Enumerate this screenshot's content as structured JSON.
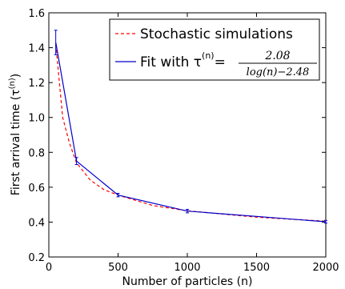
{
  "chart_data": {
    "type": "line",
    "xlabel": "Number of particles (n)",
    "ylabel": "First arrival time (τ^(n))",
    "ylabel_parts": {
      "main": "First arrival time (τ",
      "sup": "(n)",
      "close": ")"
    },
    "xlim": [
      0,
      2000
    ],
    "ylim": [
      0.2,
      1.6
    ],
    "x_ticks": [
      0,
      500,
      1000,
      1500,
      2000
    ],
    "x_tick_labels": [
      "0",
      "500",
      "1000",
      "1500",
      "2000"
    ],
    "y_ticks": [
      0.2,
      0.4,
      0.6,
      0.8,
      1.0,
      1.2,
      1.4,
      1.6
    ],
    "y_tick_labels": [
      "0.2",
      "0.4",
      "0.6",
      "0.8",
      "1.0",
      "1.2",
      "1.4",
      "1.6"
    ],
    "grid": false,
    "legend_position": "top-right",
    "series": [
      {
        "name": "Stochastic simulations",
        "color": "#ff0000",
        "dash": "dashed",
        "x": [
          50,
          100,
          150,
          200,
          300,
          400,
          500,
          750,
          1000,
          1500,
          2000
        ],
        "y": [
          1.42,
          1.0,
          0.85,
          0.74,
          0.64,
          0.585,
          0.555,
          0.495,
          0.465,
          0.428,
          0.405
        ]
      },
      {
        "name": "Fit with τ^(n) = 2.08 / (log(n) − 2.48)",
        "color": "#0000cc",
        "dash": "solid",
        "x": [
          50,
          200,
          500,
          1000,
          2000
        ],
        "y": [
          1.43,
          0.75,
          0.555,
          0.463,
          0.402
        ],
        "error": [
          0.07,
          0.02,
          0.01,
          0.01,
          0.008
        ]
      }
    ],
    "legend": {
      "entry1": "Stochastic simulations",
      "entry2_prefix": "Fit with τ",
      "entry2_sup": "(n)",
      "entry2_eq": "=",
      "entry2_numerator": "2.08",
      "entry2_denominator": "log(n)−2.48"
    }
  }
}
